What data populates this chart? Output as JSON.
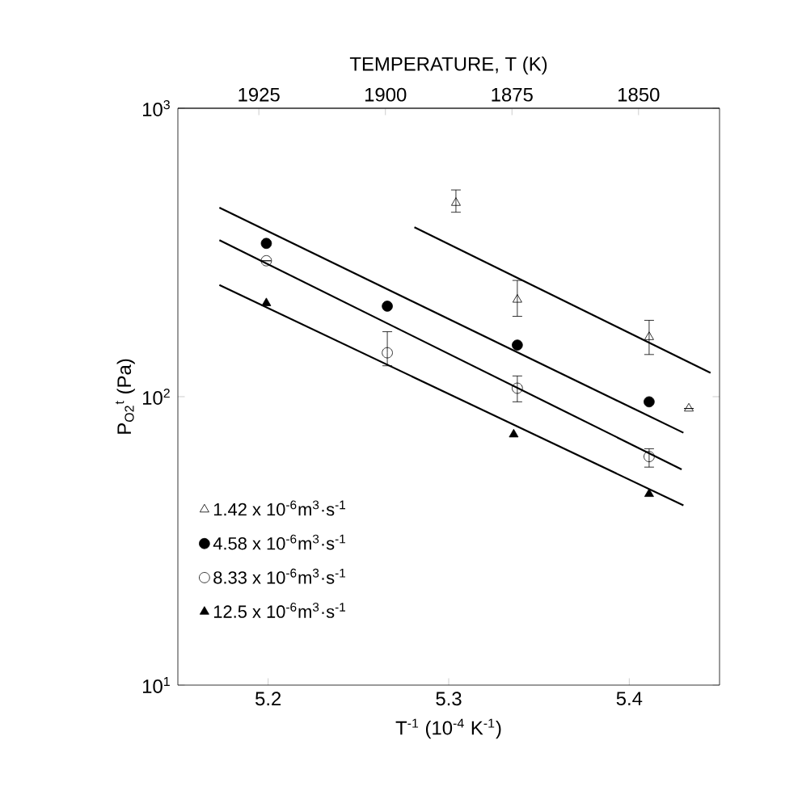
{
  "chart_data": {
    "type": "scatter",
    "x2label": "TEMPERATURE, T (K)",
    "xlabel": "T$^{-1}$ (10$^{-4}$ K$^{-1}$)",
    "ylabel": "P$_{O2}$$^{t}$ (Pa)",
    "xlim": [
      5.15,
      5.45
    ],
    "xticks": [
      5.2,
      5.3,
      5.4
    ],
    "x2lim": [
      1941,
      1834
    ],
    "x2ticks": [
      1925,
      1900,
      1875,
      1850
    ],
    "ylim": [
      10,
      1000
    ],
    "yticks": [
      {
        "value": 10,
        "label": "10$^{1}$"
      },
      {
        "value": 100,
        "label": "10$^{2}$"
      },
      {
        "value": 1000,
        "label": "10$^{3}$"
      }
    ],
    "log": "y",
    "grid": false,
    "legend": "bottom left",
    "series": [
      {
        "name": "1.42 x 10$^{-6}$m$^{3}$·s$^{-1}$",
        "marker": "triangle-open",
        "color": "#000000",
        "x": [
          5.304,
          5.338,
          5.411,
          5.433
        ],
        "values": [
          470,
          217,
          161,
          91
        ],
        "errors": [
          [
            436,
            521
          ],
          [
            190,
            253
          ],
          [
            140,
            184
          ],
          null
        ]
      },
      {
        "name": "4.58 x 10$^{-6}$m$^{3}$·s$^{-1}$",
        "marker": "circle",
        "color": "#000000",
        "x": [
          5.199,
          5.266,
          5.338,
          5.411
        ],
        "values": [
          340,
          206,
          151,
          96
        ]
      },
      {
        "name": "8.33 x 10$^{-6}$m$^{3}$·s$^{-1}$",
        "marker": "circle-open",
        "color": "#000000",
        "x": [
          5.199,
          5.266,
          5.338,
          5.411
        ],
        "values": [
          296,
          142,
          107,
          62
        ],
        "errors": [
          null,
          [
            128,
            168
          ],
          [
            96,
            118
          ],
          [
            57,
            66
          ]
        ]
      },
      {
        "name": "12.5 x 10$^{-6}$m$^{3}$·s$^{-1}$",
        "marker": "triangle",
        "color": "#000000",
        "x": [
          5.199,
          5.336,
          5.411
        ],
        "values": [
          211,
          74,
          46
        ]
      },
      {
        "type": "line",
        "color": "#000000",
        "x": [
          5.281,
          5.445
        ],
        "values": [
          387,
          121
        ]
      },
      {
        "type": "line",
        "color": "#000000",
        "x": [
          5.173,
          5.43
        ],
        "values": [
          452,
          75
        ]
      },
      {
        "type": "line",
        "color": "#000000",
        "x": [
          5.173,
          5.429
        ],
        "values": [
          349,
          56
        ]
      },
      {
        "type": "line",
        "color": "#000000",
        "x": [
          5.173,
          5.43
        ],
        "values": [
          244,
          42
        ]
      }
    ]
  }
}
